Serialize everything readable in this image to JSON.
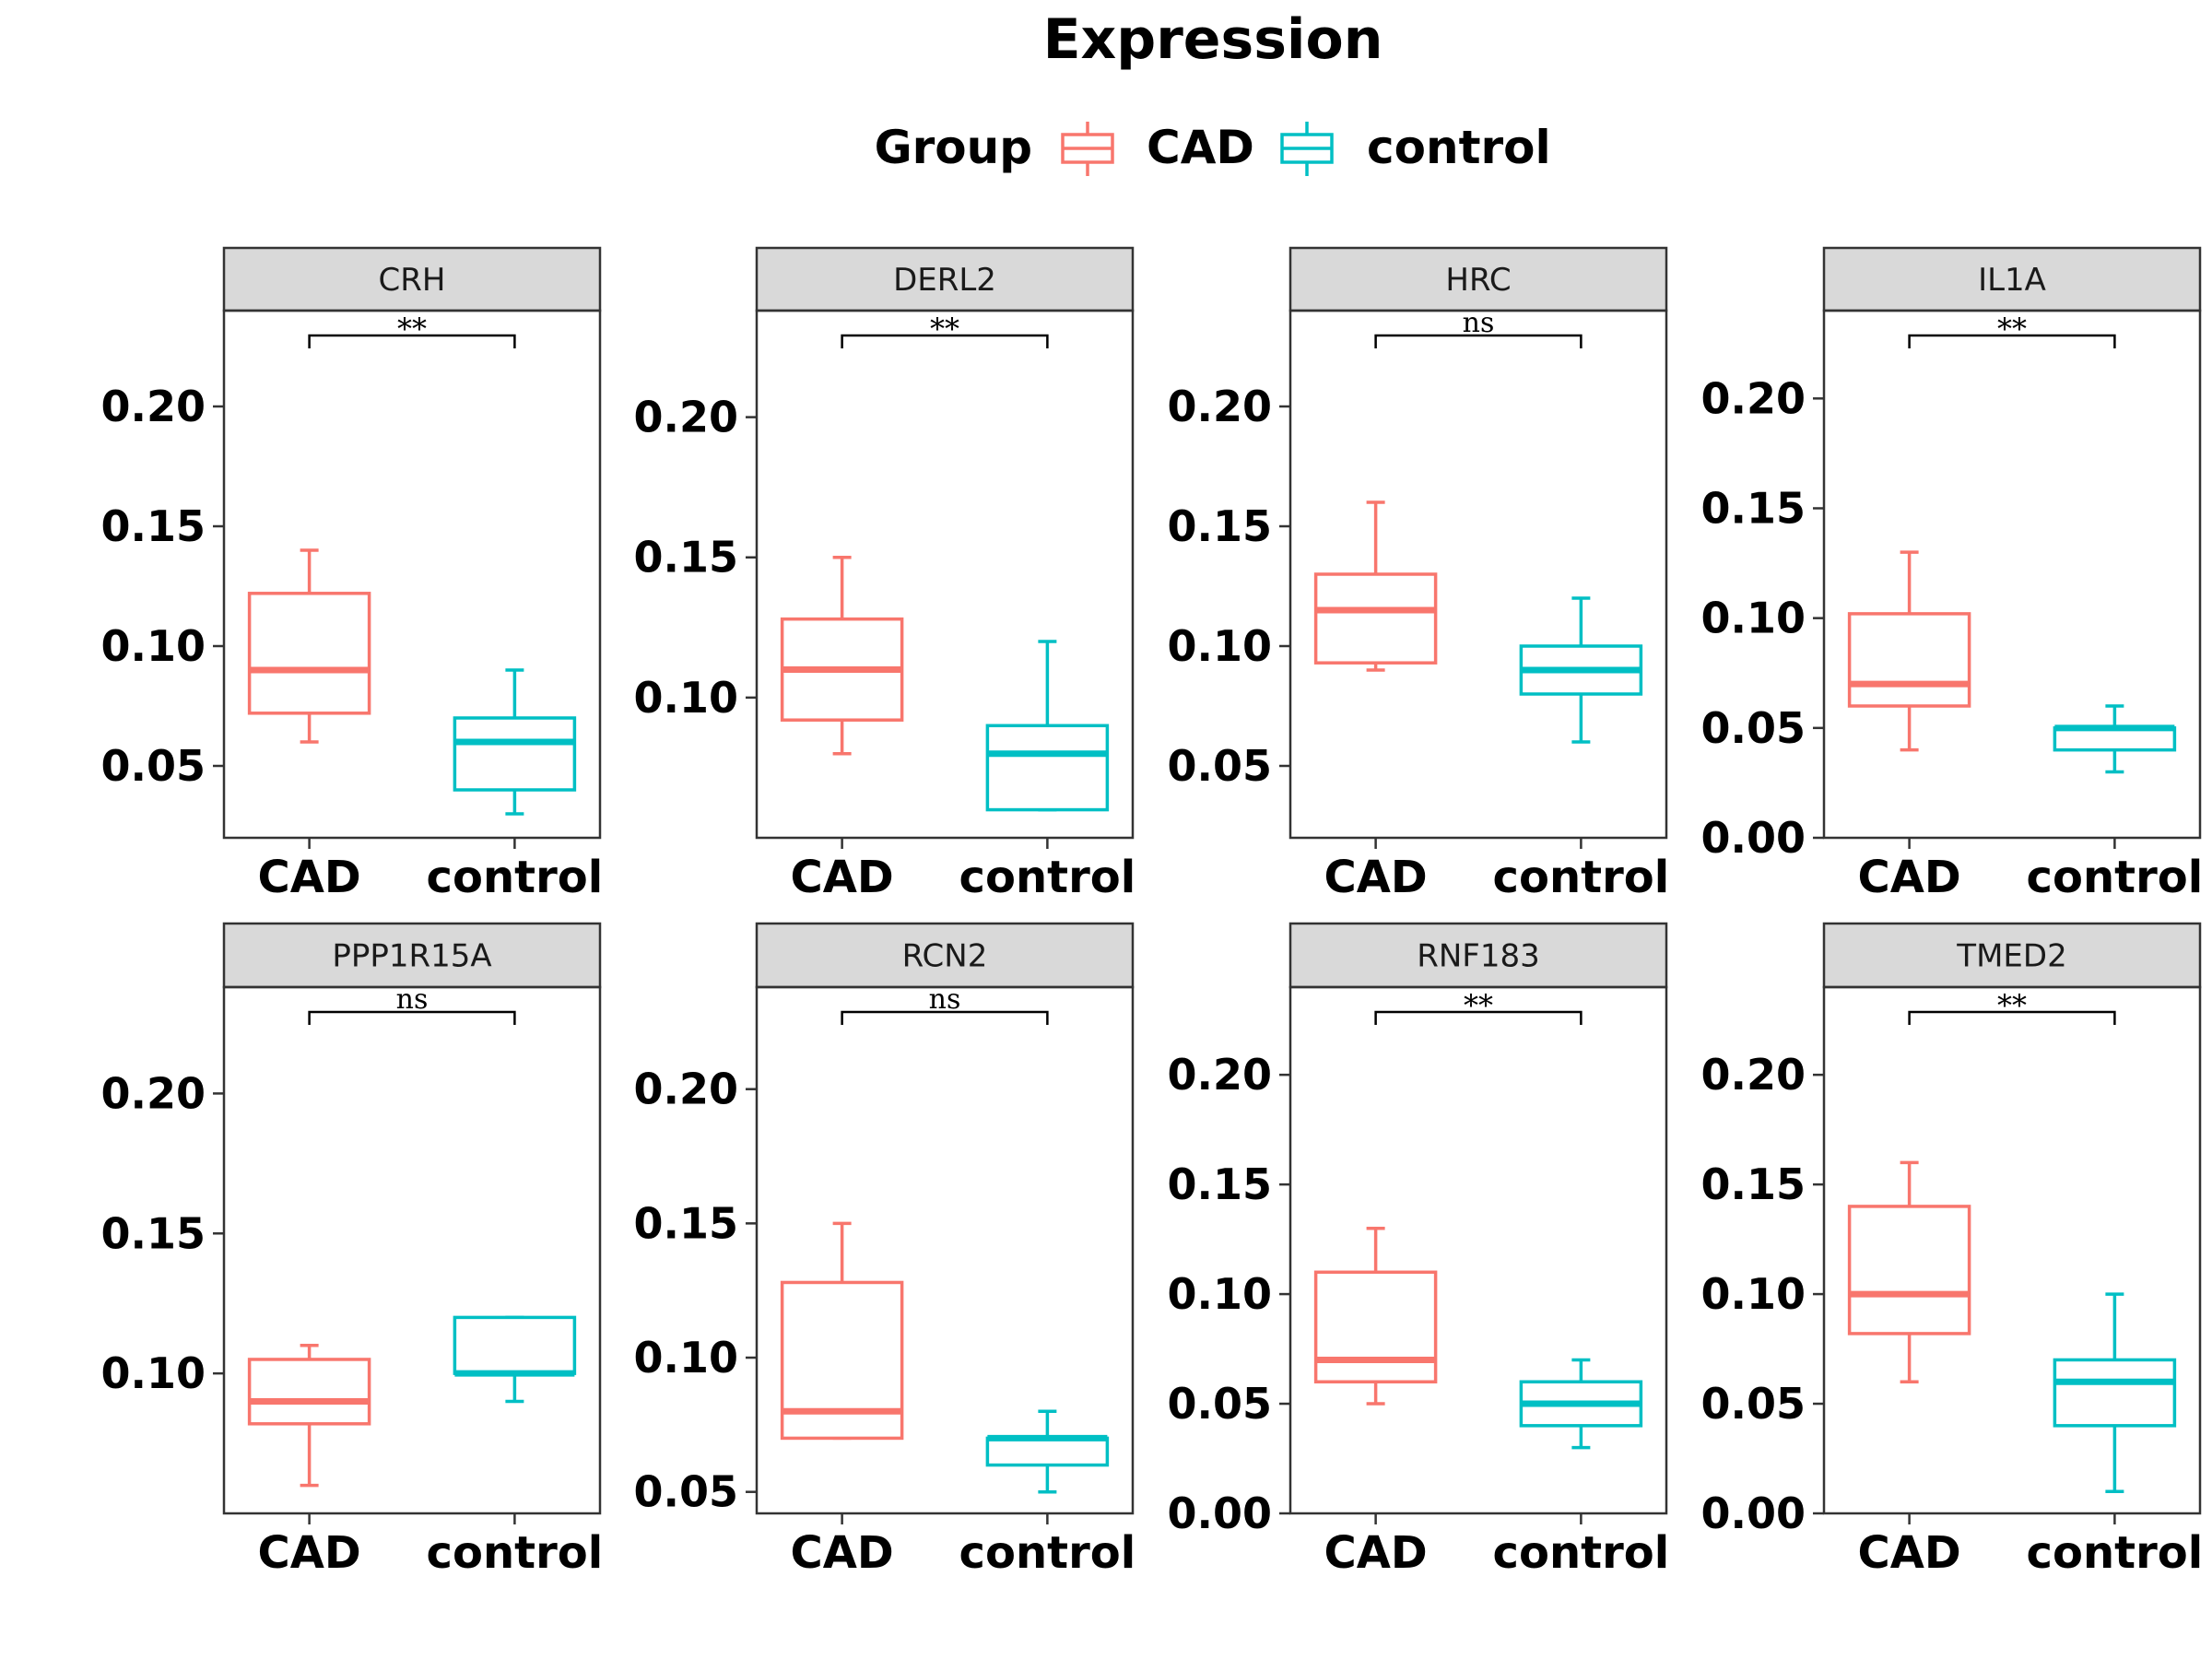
{
  "chart_data": {
    "type": "boxplot",
    "title": "Expression",
    "legend": {
      "title": "Group",
      "position": "top",
      "entries": [
        {
          "name": "CAD",
          "color": "#F8766D"
        },
        {
          "name": "control",
          "color": "#00BFC4"
        }
      ]
    },
    "categories": [
      "CAD",
      "control"
    ],
    "panels": [
      {
        "name": "CRH",
        "sig": "**",
        "ylim": [
          0.02,
          0.24
        ],
        "ticks": [
          0.05,
          0.1,
          0.15,
          0.2
        ],
        "tick_labels": [
          "0.05",
          "0.10",
          "0.15",
          "0.20"
        ],
        "boxes": [
          {
            "group": "CAD",
            "min": 0.06,
            "q1": 0.072,
            "median": 0.09,
            "q3": 0.122,
            "max": 0.14
          },
          {
            "group": "control",
            "min": 0.03,
            "q1": 0.04,
            "median": 0.06,
            "q3": 0.07,
            "max": 0.09
          }
        ]
      },
      {
        "name": "DERL2",
        "sig": "**",
        "ylim": [
          0.05,
          0.238
        ],
        "ticks": [
          0.1,
          0.15,
          0.2
        ],
        "tick_labels": [
          "0.10",
          "0.15",
          "0.20"
        ],
        "boxes": [
          {
            "group": "CAD",
            "min": 0.08,
            "q1": 0.092,
            "median": 0.11,
            "q3": 0.128,
            "max": 0.15
          },
          {
            "group": "control",
            "min": 0.06,
            "q1": 0.06,
            "median": 0.08,
            "q3": 0.09,
            "max": 0.12
          }
        ]
      },
      {
        "name": "HRC",
        "sig": "ns",
        "ylim": [
          0.02,
          0.24
        ],
        "ticks": [
          0.05,
          0.1,
          0.15,
          0.2
        ],
        "tick_labels": [
          "0.05",
          "0.10",
          "0.15",
          "0.20"
        ],
        "boxes": [
          {
            "group": "CAD",
            "min": 0.09,
            "q1": 0.093,
            "median": 0.115,
            "q3": 0.13,
            "max": 0.16
          },
          {
            "group": "control",
            "min": 0.06,
            "q1": 0.08,
            "median": 0.09,
            "q3": 0.1,
            "max": 0.12
          }
        ]
      },
      {
        "name": "IL1A",
        "sig": "**",
        "ylim": [
          0.0,
          0.24
        ],
        "ticks": [
          0.0,
          0.05,
          0.1,
          0.15,
          0.2
        ],
        "tick_labels": [
          "0.00",
          "0.05",
          "0.10",
          "0.15",
          "0.20"
        ],
        "boxes": [
          {
            "group": "CAD",
            "min": 0.04,
            "q1": 0.06,
            "median": 0.07,
            "q3": 0.102,
            "max": 0.13
          },
          {
            "group": "control",
            "min": 0.03,
            "q1": 0.04,
            "median": 0.05,
            "q3": 0.05,
            "max": 0.06
          }
        ]
      },
      {
        "name": "PPP1R15A",
        "sig": "ns",
        "ylim": [
          0.05,
          0.238
        ],
        "ticks": [
          0.1,
          0.15,
          0.2
        ],
        "tick_labels": [
          "0.10",
          "0.15",
          "0.20"
        ],
        "boxes": [
          {
            "group": "CAD",
            "min": 0.06,
            "q1": 0.082,
            "median": 0.09,
            "q3": 0.105,
            "max": 0.11
          },
          {
            "group": "control",
            "min": 0.09,
            "q1": 0.1,
            "median": 0.1,
            "q3": 0.12,
            "max": 0.12
          }
        ]
      },
      {
        "name": "RCN2",
        "sig": "ns",
        "ylim": [
          0.042,
          0.238
        ],
        "ticks": [
          0.05,
          0.1,
          0.15,
          0.2
        ],
        "tick_labels": [
          "0.05",
          "0.10",
          "0.15",
          "0.20"
        ],
        "boxes": [
          {
            "group": "CAD",
            "min": 0.07,
            "q1": 0.07,
            "median": 0.08,
            "q3": 0.128,
            "max": 0.15
          },
          {
            "group": "control",
            "min": 0.05,
            "q1": 0.06,
            "median": 0.07,
            "q3": 0.07,
            "max": 0.08
          }
        ]
      },
      {
        "name": "RNF183",
        "sig": "**",
        "ylim": [
          0.0,
          0.24
        ],
        "ticks": [
          0.0,
          0.05,
          0.1,
          0.15,
          0.2
        ],
        "tick_labels": [
          "0.00",
          "0.05",
          "0.10",
          "0.15",
          "0.20"
        ],
        "boxes": [
          {
            "group": "CAD",
            "min": 0.05,
            "q1": 0.06,
            "median": 0.07,
            "q3": 0.11,
            "max": 0.13
          },
          {
            "group": "control",
            "min": 0.03,
            "q1": 0.04,
            "median": 0.05,
            "q3": 0.06,
            "max": 0.07
          }
        ]
      },
      {
        "name": "TMED2",
        "sig": "**",
        "ylim": [
          0.0,
          0.24
        ],
        "ticks": [
          0.0,
          0.05,
          0.1,
          0.15,
          0.2
        ],
        "tick_labels": [
          "0.00",
          "0.05",
          "0.10",
          "0.15",
          "0.20"
        ],
        "boxes": [
          {
            "group": "CAD",
            "min": 0.06,
            "q1": 0.082,
            "median": 0.1,
            "q3": 0.14,
            "max": 0.16
          },
          {
            "group": "control",
            "min": 0.01,
            "q1": 0.04,
            "median": 0.06,
            "q3": 0.07,
            "max": 0.1
          }
        ]
      }
    ]
  }
}
